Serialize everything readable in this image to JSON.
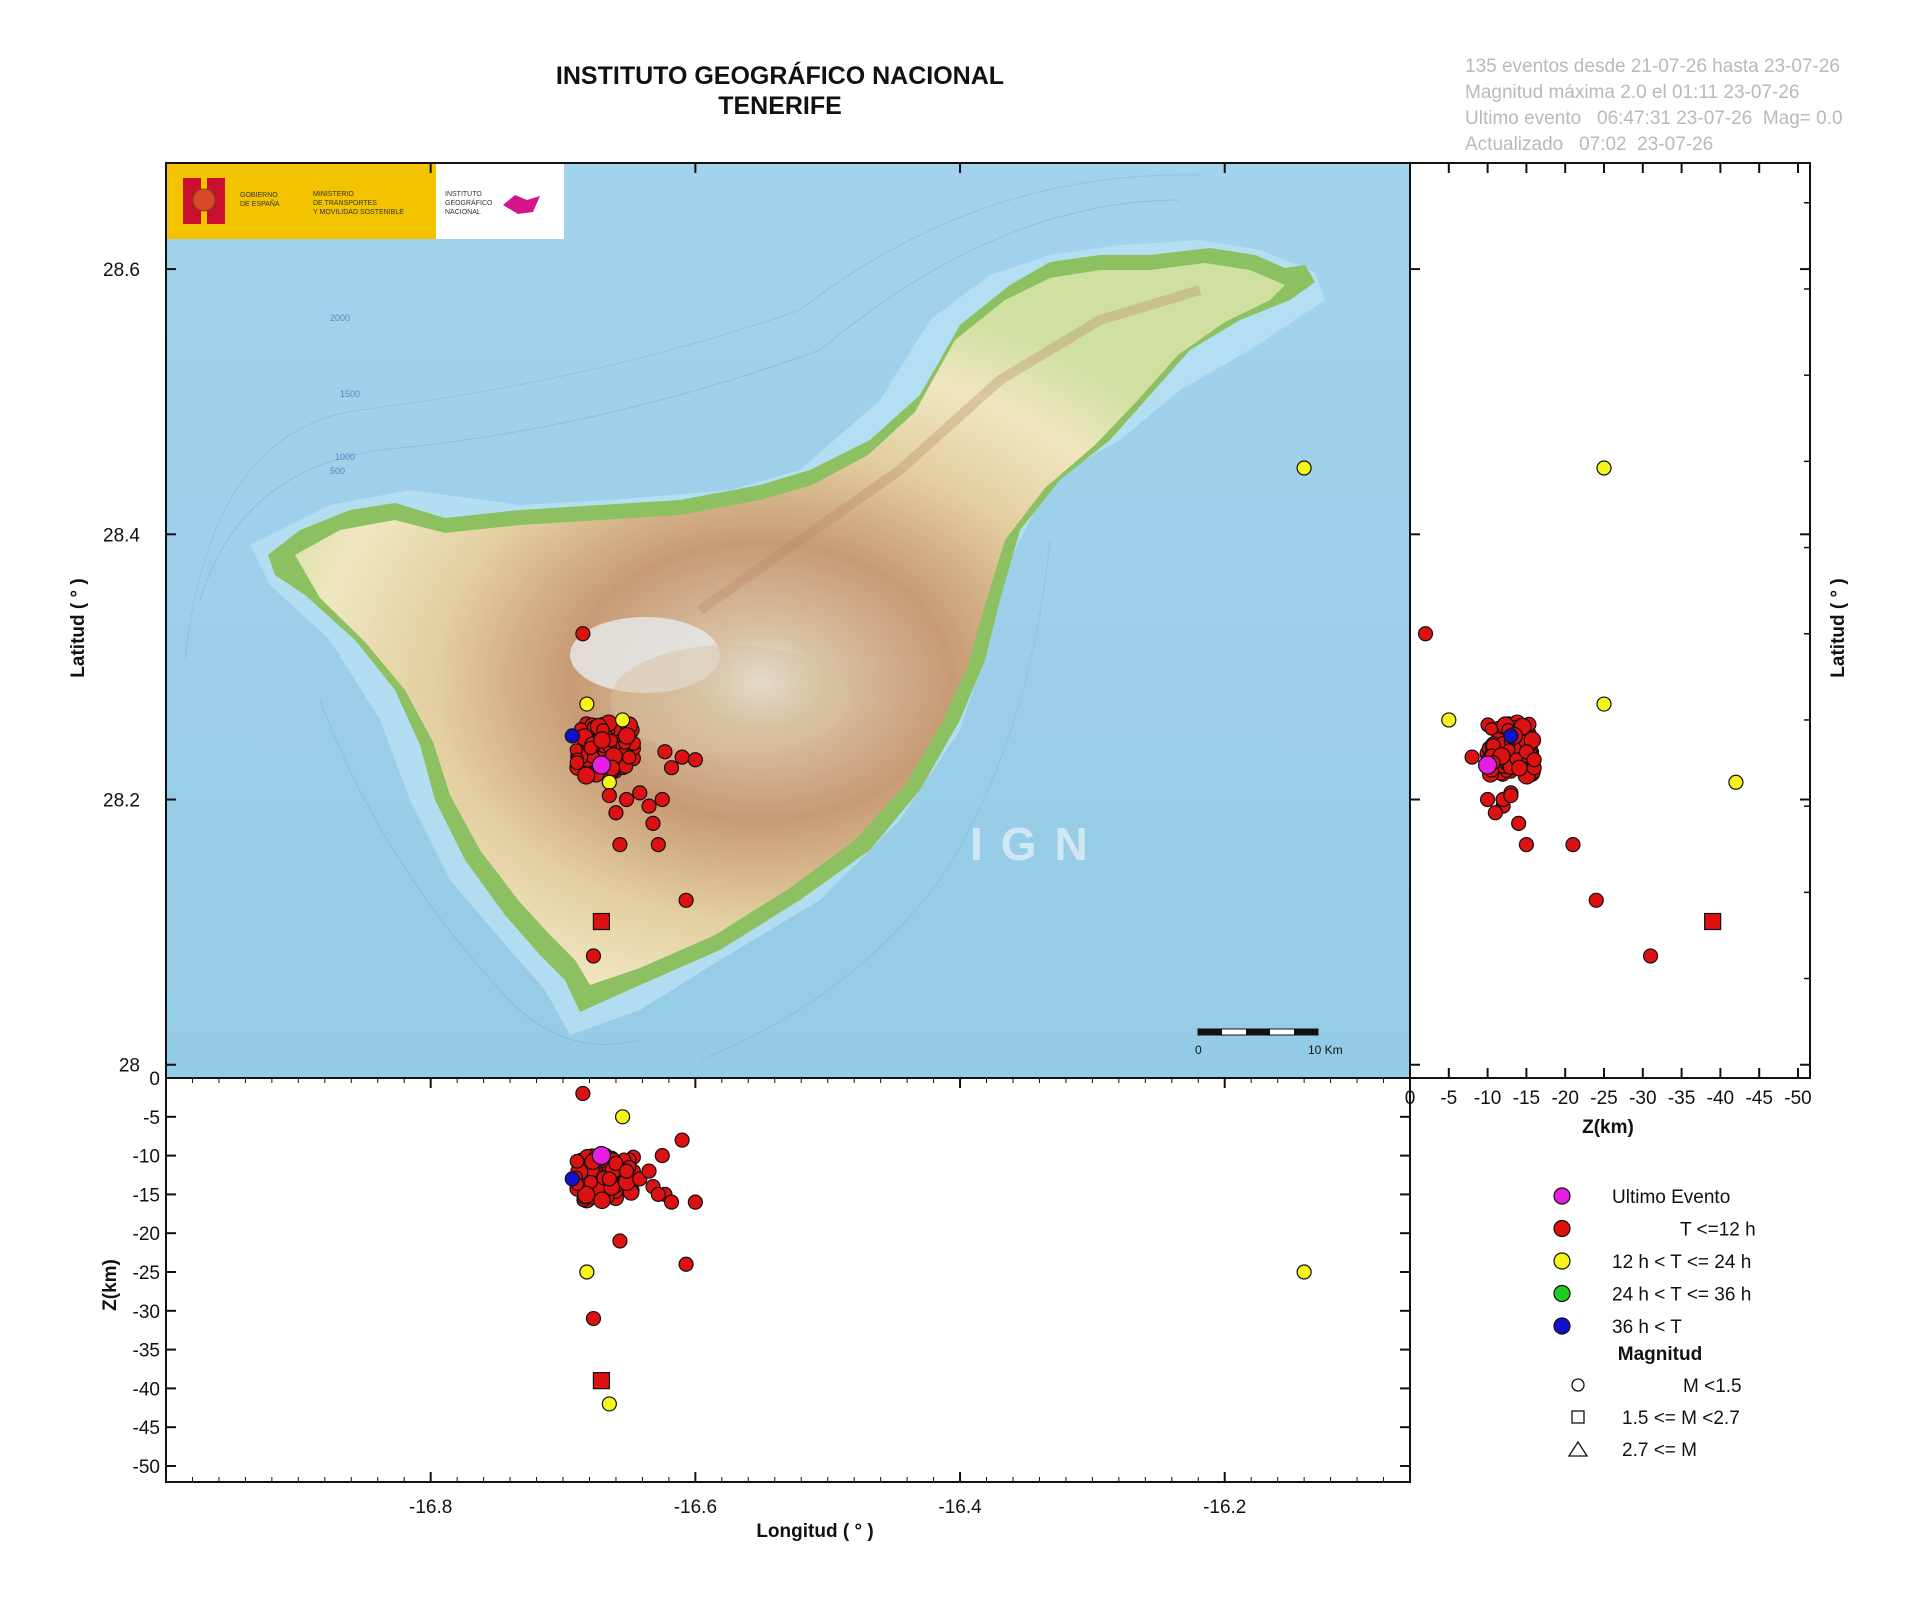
{
  "header": {
    "title_line1": "INSTITUTO GEOGRÁFICO NACIONAL",
    "title_line2": "TENERIFE"
  },
  "info": {
    "line1": "135 eventos desde 21-07-26 hasta 23-07-26",
    "line2": "Magnitud máxima 2.0 el 01:11 23-07-26",
    "line3": "Ultimo evento   06:47:31 23-07-26  Mag= 0.0",
    "line4": "Actualizado   07:02  23-07-26"
  },
  "logo": {
    "gov_line1": "GOBIERNO",
    "gov_line2": "DE ESPAÑA",
    "min_line1": "MINISTERIO",
    "min_line2": "DE TRANSPORTES",
    "min_line3": "Y MOVILIDAD SOSTENIBLE",
    "ign_line1": "INSTITUTO",
    "ign_line2": "GEOGRÁFICO",
    "ign_line3": "NACIONAL"
  },
  "map": {
    "watermark": "IGN",
    "scale_start": "0",
    "scale_end": "10 Km",
    "contour_labels": [
      "2000",
      "1500",
      "1000",
      "500"
    ],
    "colors": {
      "sea": "#9cd1ea",
      "coast": "#8cc061",
      "mid": "#e8d6a4",
      "high": "#c49a72",
      "peak": "#eaeaea"
    }
  },
  "axes": {
    "lat_title": "Latitud ( ° )",
    "lat_ticks": [
      "28.6",
      "28.4",
      "28.2",
      "28"
    ],
    "depth_title": "Z(km)",
    "depth_ticks": [
      "0",
      "-5",
      "-10",
      "-15",
      "-20",
      "-25",
      "-30",
      "-35",
      "-40",
      "-45",
      "-50"
    ],
    "lon_title": "Longitud ( ° )",
    "lon_ticks": [
      "-16.8",
      "-16.6",
      "-16.4",
      "-16.2"
    ],
    "z_title": "Z(km)",
    "z_ticks": [
      "0",
      "-5",
      "-10",
      "-15",
      "-20",
      "-25",
      "-30",
      "-35",
      "-40",
      "-45",
      "-50"
    ],
    "lat_title_right": "Latitud ( ° )"
  },
  "legend": {
    "items": [
      {
        "label": "Ultimo Evento",
        "color": "#e61ee6"
      },
      {
        "label": "T <=12 h",
        "color": "#dd1111"
      },
      {
        "label": "12 h  < T <= 24 h",
        "color": "#f5f51a"
      },
      {
        "label": "24 h  < T <= 36 h",
        "color": "#22cc22"
      },
      {
        "label": "36 h <  T",
        "color": "#1111cc"
      }
    ],
    "magnitude_title": "Magnitud",
    "magnitude_items": [
      {
        "label": "M <1.5",
        "shape": "circle"
      },
      {
        "label": "1.5 <= M <2.7",
        "shape": "square"
      },
      {
        "label": "2.7 <= M",
        "shape": "triangle"
      }
    ]
  },
  "chart_data": {
    "type": "scatter",
    "xlim": [
      -17.0,
      -16.06
    ],
    "ylim": [
      27.99,
      28.68
    ],
    "zlim": [
      0,
      -50
    ],
    "events": [
      {
        "lon": -16.685,
        "lat": 28.325,
        "depth": -2,
        "cat": "red",
        "mag": "circle"
      },
      {
        "lon": -16.682,
        "lat": 28.272,
        "depth": -25,
        "cat": "yellow",
        "mag": "circle"
      },
      {
        "lon": -16.655,
        "lat": 28.26,
        "depth": -5,
        "cat": "yellow",
        "mag": "circle"
      },
      {
        "lon": -16.693,
        "lat": 28.248,
        "depth": -13,
        "cat": "blue",
        "mag": "circle"
      },
      {
        "lon": -16.665,
        "lat": 28.213,
        "depth": -42,
        "cat": "yellow",
        "mag": "circle"
      },
      {
        "lon": -16.14,
        "lat": 28.45,
        "depth": -25,
        "cat": "yellow",
        "mag": "circle"
      },
      {
        "lon": -16.623,
        "lat": 28.236,
        "depth": -15,
        "cat": "red",
        "mag": "circle"
      },
      {
        "lon": -16.618,
        "lat": 28.224,
        "depth": -16,
        "cat": "red",
        "mag": "circle"
      },
      {
        "lon": -16.61,
        "lat": 28.232,
        "depth": -8,
        "cat": "red",
        "mag": "circle"
      },
      {
        "lon": -16.6,
        "lat": 28.23,
        "depth": -16,
        "cat": "red",
        "mag": "circle"
      },
      {
        "lon": -16.642,
        "lat": 28.205,
        "depth": -13,
        "cat": "red",
        "mag": "circle"
      },
      {
        "lon": -16.635,
        "lat": 28.195,
        "depth": -12,
        "cat": "red",
        "mag": "circle"
      },
      {
        "lon": -16.632,
        "lat": 28.182,
        "depth": -14,
        "cat": "red",
        "mag": "circle"
      },
      {
        "lon": -16.66,
        "lat": 28.19,
        "depth": -11,
        "cat": "red",
        "mag": "circle"
      },
      {
        "lon": -16.652,
        "lat": 28.2,
        "depth": -12,
        "cat": "red",
        "mag": "circle"
      },
      {
        "lon": -16.625,
        "lat": 28.2,
        "depth": -10,
        "cat": "red",
        "mag": "circle"
      },
      {
        "lon": -16.665,
        "lat": 28.203,
        "depth": -13,
        "cat": "red",
        "mag": "circle"
      },
      {
        "lon": -16.657,
        "lat": 28.166,
        "depth": -21,
        "cat": "red",
        "mag": "circle"
      },
      {
        "lon": -16.628,
        "lat": 28.166,
        "depth": -15,
        "cat": "red",
        "mag": "circle"
      },
      {
        "lon": -16.607,
        "lat": 28.124,
        "depth": -24,
        "cat": "red",
        "mag": "circle"
      },
      {
        "lon": -16.677,
        "lat": 28.082,
        "depth": -31,
        "cat": "red",
        "mag": "circle"
      },
      {
        "lon": -16.671,
        "lat": 28.108,
        "depth": -39,
        "cat": "red",
        "mag": "square"
      },
      {
        "lon": -16.671,
        "lat": 28.226,
        "depth": -10,
        "cat": "magenta",
        "mag": "circle"
      }
    ]
  }
}
